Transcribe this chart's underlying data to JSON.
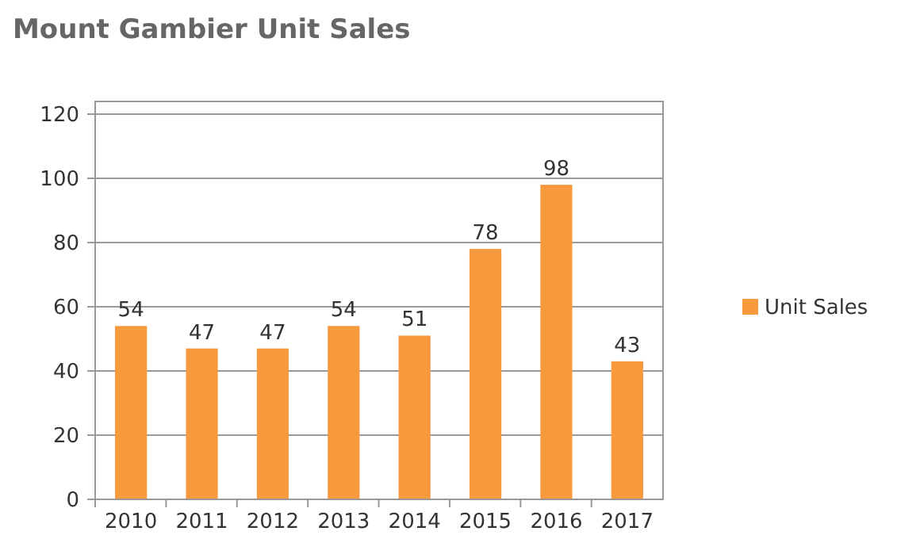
{
  "chart_data": {
    "type": "bar",
    "title": "Mount Gambier Unit Sales",
    "categories": [
      "2010",
      "2011",
      "2012",
      "2013",
      "2014",
      "2015",
      "2016",
      "2017"
    ],
    "series": [
      {
        "name": "Unit Sales",
        "color": "#f79a3e",
        "values": [
          54,
          47,
          47,
          54,
          51,
          78,
          98,
          43
        ]
      }
    ],
    "ylim": [
      0,
      120
    ],
    "yticks": [
      0,
      20,
      40,
      60,
      80,
      100,
      120
    ],
    "grid": "y",
    "legend": "right",
    "data_labels": true
  }
}
